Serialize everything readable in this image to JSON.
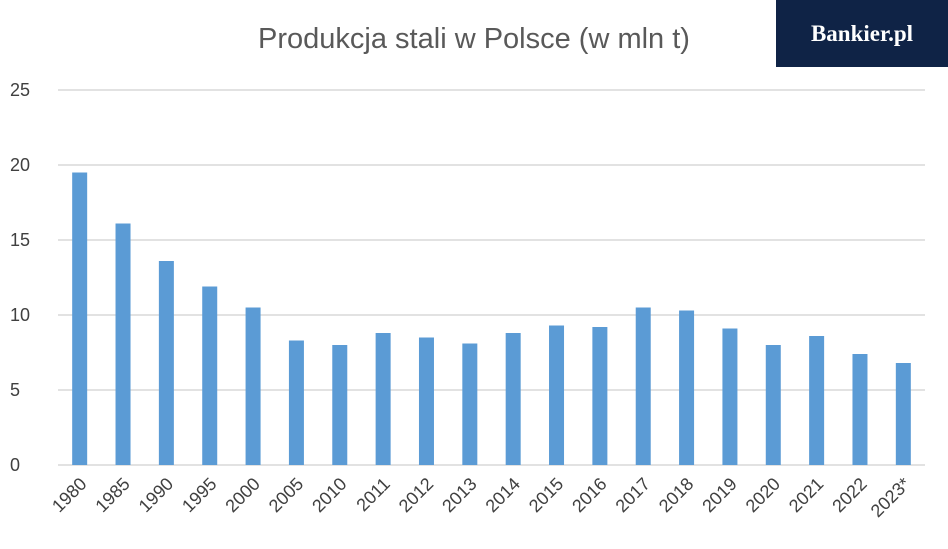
{
  "logo": "Bankier.pl",
  "chart_data": {
    "type": "bar",
    "title": "Produkcja stali w Polsce (w mln t)",
    "categories": [
      "1980",
      "1985",
      "1990",
      "1995",
      "2000",
      "2005",
      "2010",
      "2011",
      "2012",
      "2013",
      "2014",
      "2015",
      "2016",
      "2017",
      "2018",
      "2019",
      "2020",
      "2021",
      "2022",
      "2023*"
    ],
    "values": [
      19.5,
      16.1,
      13.6,
      11.9,
      10.5,
      8.3,
      8.0,
      8.8,
      8.5,
      8.1,
      8.8,
      9.3,
      9.2,
      10.5,
      10.3,
      9.1,
      8.0,
      8.6,
      7.4,
      6.8
    ],
    "color": "#5b9bd5",
    "ylim": [
      0,
      25
    ],
    "yticks": [
      0,
      5,
      10,
      15,
      20,
      25
    ],
    "grid": true
  }
}
